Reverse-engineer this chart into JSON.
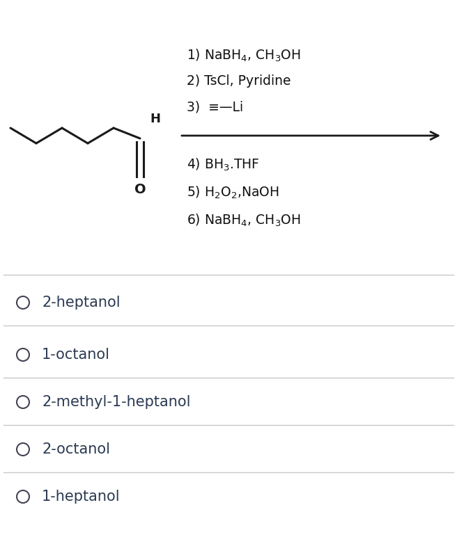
{
  "bg_color": "#ffffff",
  "text_color": "#1a1a1a",
  "reaction_steps_above": [
    "1) NaBH$_4$, CH$_3$OH",
    "2) TsCl, Pyridine",
    "3)  ≡—Li"
  ],
  "reaction_steps_below": [
    "4) BH$_3$.THF",
    "5) H$_2$O$_2$,NaOH",
    "6) NaBH$_4$, CH$_3$OH"
  ],
  "choices": [
    "2-heptanol",
    "1-octanol",
    "2-methyl-1-heptanol",
    "2-octanol",
    "1-heptanol"
  ],
  "divider_color": "#c8c8c8",
  "arrow_color": "#1a1a1a",
  "circle_color": "#444455",
  "font_size_reaction": 13.5,
  "font_size_choices": 15
}
